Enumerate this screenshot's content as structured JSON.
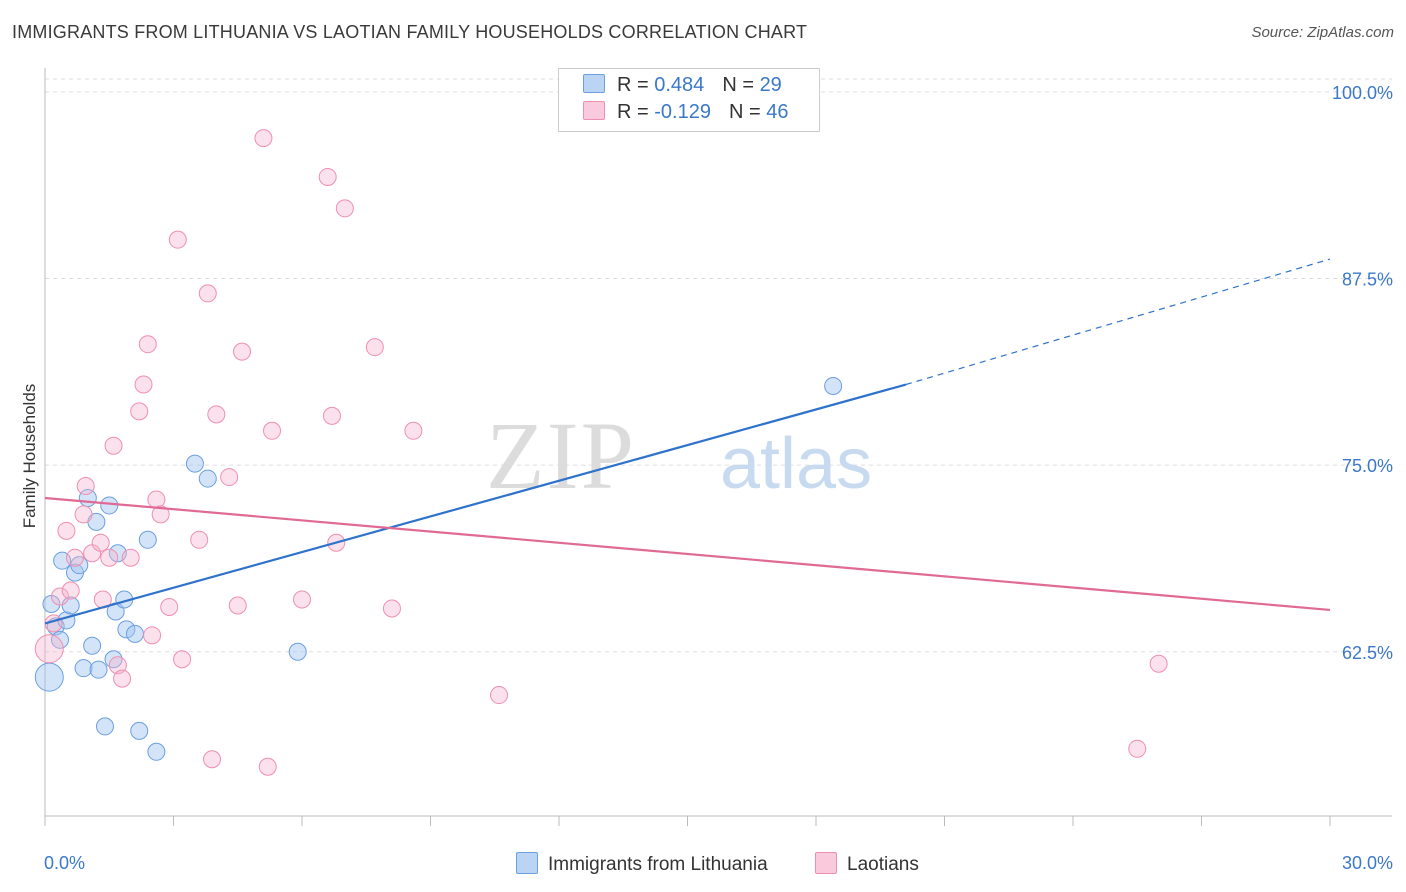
{
  "title": "IMMIGRANTS FROM LITHUANIA VS LAOTIAN FAMILY HOUSEHOLDS CORRELATION CHART",
  "source": "Source: ZipAtlas.com",
  "watermark": {
    "zip": "ZIP",
    "atlas": "atlas"
  },
  "legend": {
    "rows": [
      {
        "r_label": "R =",
        "r_value": "0.484",
        "n_label": "N =",
        "n_value": "29"
      },
      {
        "r_label": "R =",
        "r_value": "-0.129",
        "n_label": "N =",
        "n_value": "46"
      }
    ]
  },
  "chart_data": {
    "type": "scatter",
    "ylabel": "Family Households",
    "xlim": [
      0,
      30
    ],
    "ylim": [
      51.5,
      102
    ],
    "x_tick_labels": [
      "0.0%",
      "30.0%"
    ],
    "y_ticks": [
      100,
      87.5,
      75,
      62.5
    ],
    "y_tick_labels": [
      "100.0%",
      "87.5%",
      "75.0%",
      "62.5%"
    ],
    "colors": {
      "blue": "#6a9fe0",
      "blue_line": "#2f72cc",
      "pink": "#ef8fb0",
      "pink_line": "#e06a93",
      "axis_label": "#3b78c9"
    },
    "series": [
      {
        "name": "Immigrants from Lithuania",
        "color": "#6a9fe0",
        "points": [
          [
            0.1,
            60.8
          ],
          [
            0.15,
            65.7
          ],
          [
            0.25,
            64.2
          ],
          [
            0.35,
            63.3
          ],
          [
            0.4,
            68.6
          ],
          [
            0.5,
            64.6
          ],
          [
            0.6,
            65.6
          ],
          [
            0.7,
            67.8
          ],
          [
            0.8,
            68.3
          ],
          [
            0.9,
            61.4
          ],
          [
            1.0,
            72.8
          ],
          [
            1.1,
            62.9
          ],
          [
            1.2,
            71.2
          ],
          [
            1.25,
            61.3
          ],
          [
            1.4,
            57.5
          ],
          [
            1.5,
            72.3
          ],
          [
            1.6,
            62.0
          ],
          [
            1.65,
            65.2
          ],
          [
            1.7,
            69.1
          ],
          [
            1.85,
            66.0
          ],
          [
            1.9,
            64.0
          ],
          [
            2.1,
            63.7
          ],
          [
            2.2,
            57.2
          ],
          [
            2.4,
            70.0
          ],
          [
            2.6,
            55.8
          ],
          [
            3.5,
            75.1
          ],
          [
            3.8,
            74.1
          ],
          [
            5.9,
            62.5
          ],
          [
            18.4,
            80.3
          ]
        ],
        "trend": {
          "x0": 0,
          "y0": 64.4,
          "x1": 20.1,
          "y1": 80.4,
          "dash_x1": 30,
          "dash_y1": 88.8
        }
      },
      {
        "name": "Laotians",
        "color": "#ef8fb0",
        "points": [
          [
            0.1,
            62.7
          ],
          [
            0.2,
            64.4
          ],
          [
            0.35,
            66.2
          ],
          [
            0.5,
            70.6
          ],
          [
            0.6,
            66.6
          ],
          [
            0.7,
            68.8
          ],
          [
            0.9,
            71.7
          ],
          [
            0.95,
            73.6
          ],
          [
            1.1,
            69.1
          ],
          [
            1.3,
            69.8
          ],
          [
            1.35,
            66.0
          ],
          [
            1.5,
            68.8
          ],
          [
            1.6,
            76.3
          ],
          [
            1.7,
            61.6
          ],
          [
            1.8,
            60.7
          ],
          [
            2.0,
            68.8
          ],
          [
            2.2,
            78.6
          ],
          [
            2.3,
            80.4
          ],
          [
            2.4,
            83.1
          ],
          [
            2.5,
            63.6
          ],
          [
            2.6,
            72.7
          ],
          [
            2.7,
            71.7
          ],
          [
            2.9,
            65.5
          ],
          [
            3.1,
            90.1
          ],
          [
            3.2,
            62.0
          ],
          [
            3.6,
            70.0
          ],
          [
            3.8,
            86.5
          ],
          [
            3.9,
            55.3
          ],
          [
            4.0,
            78.4
          ],
          [
            4.3,
            74.2
          ],
          [
            4.5,
            65.6
          ],
          [
            4.6,
            82.6
          ],
          [
            5.1,
            96.9
          ],
          [
            5.2,
            54.8
          ],
          [
            5.3,
            77.3
          ],
          [
            6.0,
            66.0
          ],
          [
            6.6,
            94.3
          ],
          [
            6.7,
            78.3
          ],
          [
            6.8,
            69.8
          ],
          [
            7.0,
            92.2
          ],
          [
            7.7,
            82.9
          ],
          [
            8.1,
            65.4
          ],
          [
            8.6,
            77.3
          ],
          [
            10.6,
            59.6
          ],
          [
            25.5,
            56.0
          ],
          [
            26.0,
            61.7
          ]
        ],
        "trend": {
          "x0": 0,
          "y0": 72.8,
          "x1": 30,
          "y1": 65.3
        }
      }
    ]
  }
}
